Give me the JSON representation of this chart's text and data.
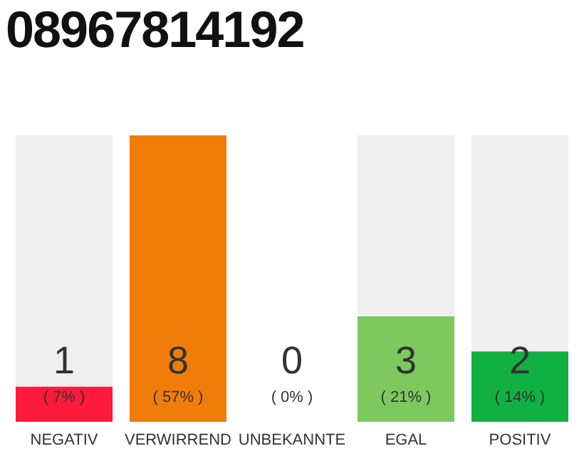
{
  "chart_data": {
    "type": "bar",
    "title": "08967814192",
    "categories": [
      "NEGATIV",
      "VERWIRREND",
      "UNBEKANNTE",
      "EGAL",
      "POSITIV"
    ],
    "values": [
      7,
      57,
      0,
      21,
      14
    ],
    "colors": [
      "#ff1a3c",
      "#f07d0a",
      "#cccccc",
      "#7dc95e",
      "#10b043"
    ],
    "value_labels": [
      "( 7% )",
      "( 57% )",
      "( 0% )",
      "( 21% )",
      "( 14% )"
    ],
    "annotations": [
      "1",
      "8",
      "0",
      "3",
      "2"
    ]
  }
}
